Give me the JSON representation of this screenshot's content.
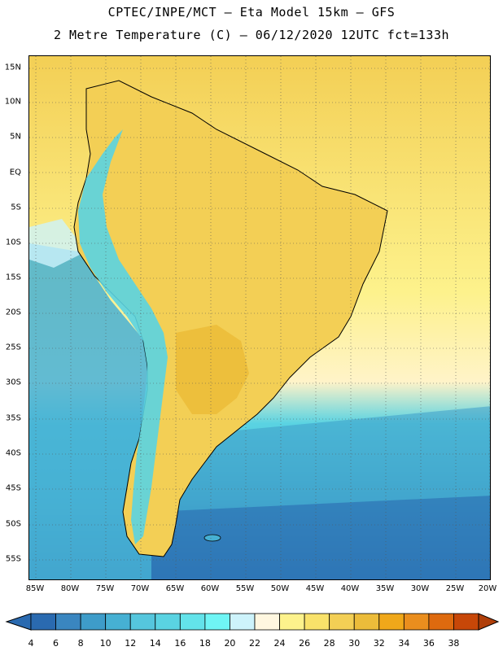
{
  "header": {
    "line1": "CPTEC/INPE/MCT  –  Eta Model 15km – GFS",
    "line2": "2 Metre Temperature (C) – 06/12/2020 12UTC fct=133h"
  },
  "map": {
    "region": "South America",
    "latitudes": [
      "15N",
      "10N",
      "5N",
      "EQ",
      "5S",
      "10S",
      "15S",
      "20S",
      "25S",
      "30S",
      "35S",
      "40S",
      "45S",
      "50S",
      "55S"
    ],
    "longitudes": [
      "85W",
      "80W",
      "75W",
      "70W",
      "65W",
      "60W",
      "55W",
      "50W",
      "45W",
      "40W",
      "35W",
      "30W",
      "25W",
      "20W"
    ]
  },
  "colorbar": {
    "labels": [
      "4",
      "6",
      "8",
      "10",
      "12",
      "14",
      "16",
      "18",
      "20",
      "22",
      "24",
      "26",
      "28",
      "30",
      "32",
      "34",
      "36",
      "38"
    ],
    "colors": [
      "#2a6ab0",
      "#3a86c0",
      "#3e9cc9",
      "#46b0d3",
      "#55c6dd",
      "#5ad3e2",
      "#63e3ea",
      "#6ff5f5",
      "#cdf3fb",
      "#fff7e0",
      "#fdf28c",
      "#f9e26a",
      "#f3cf55",
      "#ecbc3a",
      "#f0a81a",
      "#ea8e1e",
      "#de6a0f",
      "#c74708",
      "#b03f0a"
    ]
  }
}
